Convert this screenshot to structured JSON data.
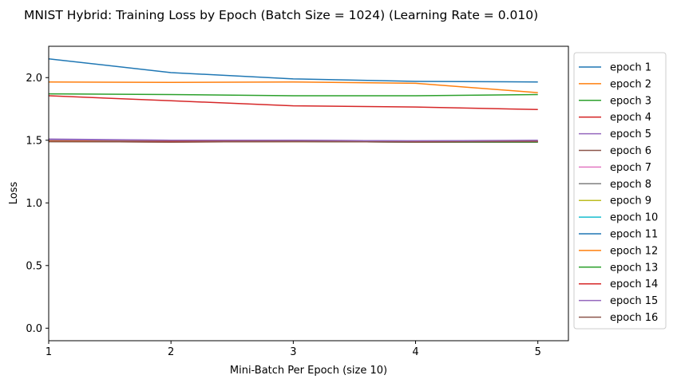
{
  "chart_data": {
    "type": "line",
    "title": "MNIST Hybrid: Training Loss by Epoch (Batch Size = 1024) (Learning Rate = 0.010)",
    "xlabel": "Mini-Batch Per Epoch (size 10)",
    "ylabel": "Loss",
    "x": [
      1,
      2,
      3,
      4,
      5
    ],
    "xticks": [
      "1",
      "2",
      "3",
      "4",
      "5"
    ],
    "xlim": [
      1,
      5.25
    ],
    "yticks": [
      "0.0",
      "0.5",
      "1.0",
      "1.5",
      "2.0"
    ],
    "ylim": [
      -0.1,
      2.25
    ],
    "grid": false,
    "legend": "outside-right",
    "series": [
      {
        "name": "epoch 1",
        "color": "#1f77b4",
        "values": [
          2.15,
          2.04,
          1.99,
          1.97,
          1.965
        ]
      },
      {
        "name": "epoch 2",
        "color": "#ff7f0e",
        "values": [
          1.965,
          1.962,
          1.965,
          1.955,
          1.88
        ]
      },
      {
        "name": "epoch 3",
        "color": "#2ca02c",
        "values": [
          1.87,
          1.865,
          1.855,
          1.855,
          1.865
        ]
      },
      {
        "name": "epoch 4",
        "color": "#d62728",
        "values": [
          1.855,
          1.815,
          1.775,
          1.765,
          1.745
        ]
      },
      {
        "name": "epoch 5",
        "color": "#9467bd",
        "values": [
          1.51,
          1.5,
          1.5,
          1.495,
          1.495
        ]
      },
      {
        "name": "epoch 6",
        "color": "#8c564b",
        "values": [
          1.49,
          1.485,
          1.49,
          1.485,
          1.49
        ]
      },
      {
        "name": "epoch 7",
        "color": "#e377c2",
        "values": [
          1.495,
          1.49,
          1.495,
          1.49,
          1.495
        ]
      },
      {
        "name": "epoch 8",
        "color": "#7f7f7f",
        "values": [
          1.5,
          1.495,
          1.495,
          1.49,
          1.49
        ]
      },
      {
        "name": "epoch 9",
        "color": "#bcbd22",
        "values": [
          1.495,
          1.49,
          1.49,
          1.49,
          1.49
        ]
      },
      {
        "name": "epoch 10",
        "color": "#17becf",
        "values": [
          1.495,
          1.49,
          1.495,
          1.49,
          1.49
        ]
      },
      {
        "name": "epoch 11",
        "color": "#1f77b4",
        "values": [
          1.49,
          1.49,
          1.49,
          1.485,
          1.485
        ]
      },
      {
        "name": "epoch 12",
        "color": "#ff7f0e",
        "values": [
          1.495,
          1.49,
          1.49,
          1.49,
          1.49
        ]
      },
      {
        "name": "epoch 13",
        "color": "#2ca02c",
        "values": [
          1.49,
          1.49,
          1.49,
          1.485,
          1.485
        ]
      },
      {
        "name": "epoch 14",
        "color": "#d62728",
        "values": [
          1.49,
          1.49,
          1.49,
          1.49,
          1.49
        ]
      },
      {
        "name": "epoch 15",
        "color": "#9467bd",
        "values": [
          1.505,
          1.5,
          1.5,
          1.495,
          1.5
        ]
      },
      {
        "name": "epoch 16",
        "color": "#8c564b",
        "values": [
          1.49,
          1.485,
          1.49,
          1.485,
          1.49
        ]
      }
    ]
  }
}
